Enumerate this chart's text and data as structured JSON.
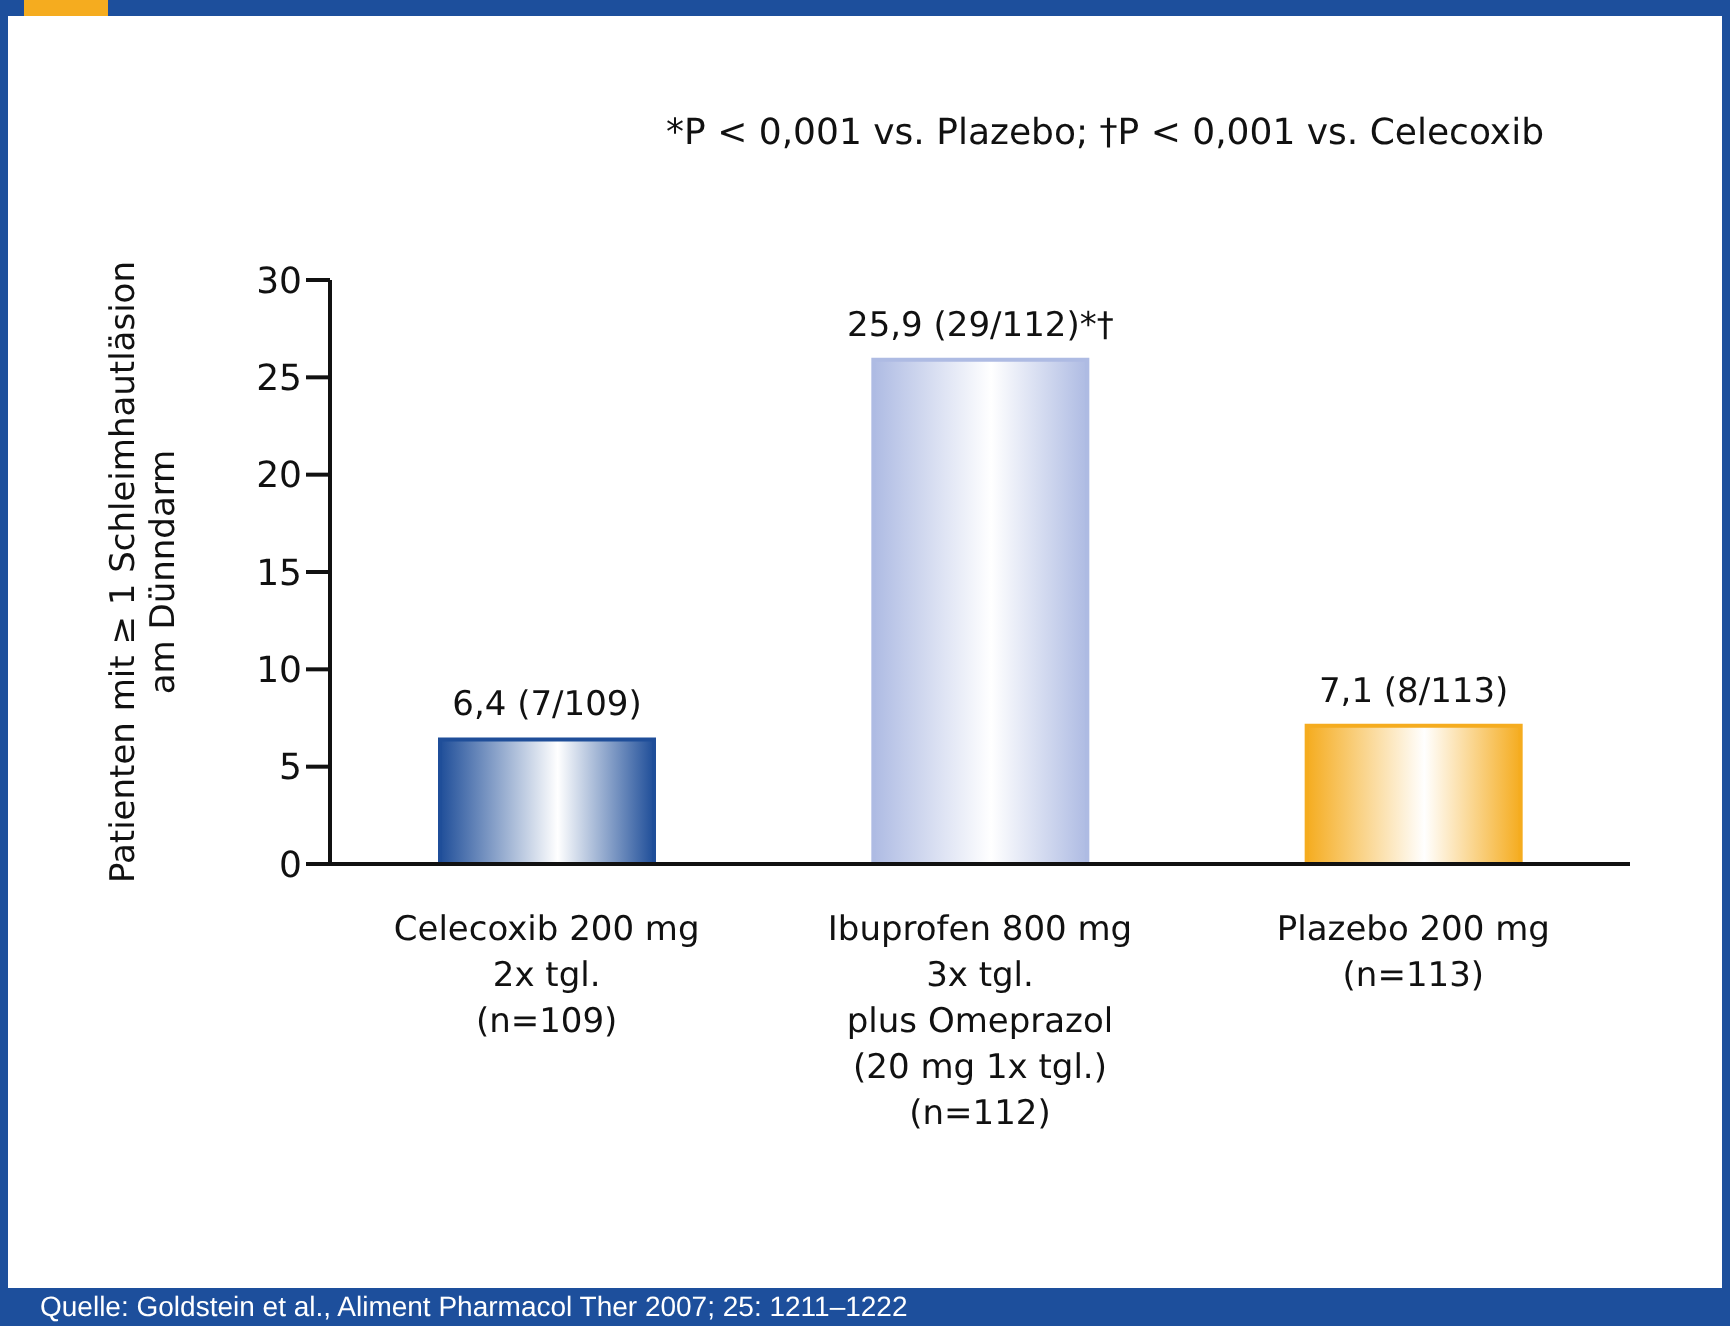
{
  "chart_data": {
    "type": "bar",
    "ylabel": "Patienten mit ≥ 1 Schleimhautläsion\nam Dünndarm",
    "categories": [
      "Celecoxib 200 mg\n2x tgl.\n(n=109)",
      "Ibuprofen 800 mg\n3x tgl.\nplus Omeprazol\n(20 mg 1x tgl.)\n(n=112)",
      "Plazebo 200 mg\n(n=113)"
    ],
    "values": [
      6.4,
      25.9,
      7.1
    ],
    "colors": [
      "#1f4e99",
      "#aebbe3",
      "#f5ac1f"
    ],
    "value_labels": [
      "6,4 (7/109)",
      "25,9 (29/112)*†",
      "7,1 (8/113)"
    ],
    "ylim": [
      0,
      30
    ],
    "yticks": [
      0,
      5,
      10,
      15,
      20,
      25,
      30
    ],
    "grid": false,
    "legend": false,
    "annotations": [
      "*P < 0,001 vs. Plazebo; †P < 0,001 vs. Celecoxib",
      "Quelle: Goldstein et al., Aliment Pharmacol Ther 2007; 25: 1211–1222"
    ]
  }
}
